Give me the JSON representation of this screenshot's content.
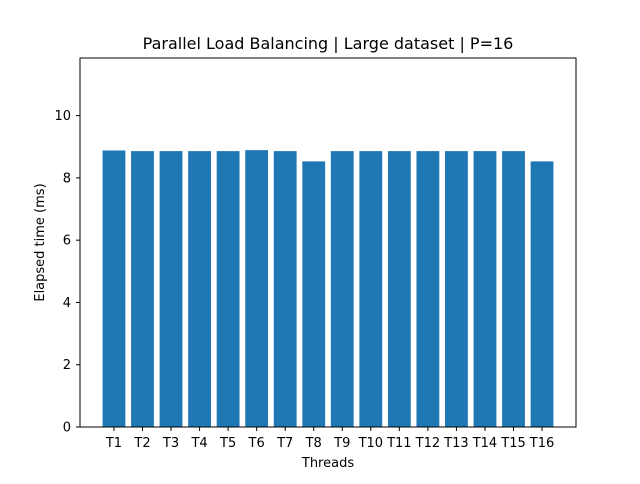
{
  "chart_data": {
    "type": "bar",
    "title": "Parallel Load Balancing | Large dataset | P=16",
    "xlabel": "Threads",
    "ylabel": "Elapsed time (ms)",
    "categories": [
      "T1",
      "T2",
      "T3",
      "T4",
      "T5",
      "T6",
      "T7",
      "T8",
      "T9",
      "T10",
      "T11",
      "T12",
      "T13",
      "T14",
      "T15",
      "T16"
    ],
    "values": [
      8.88,
      8.86,
      8.86,
      8.86,
      8.86,
      8.89,
      8.86,
      8.53,
      8.86,
      8.86,
      8.86,
      8.86,
      8.86,
      8.86,
      8.86,
      8.53
    ],
    "ylim": [
      0,
      11.85
    ],
    "yticks": [
      0,
      2,
      4,
      6,
      8,
      10
    ],
    "grid": false,
    "bar_color": "#1f77b4"
  }
}
